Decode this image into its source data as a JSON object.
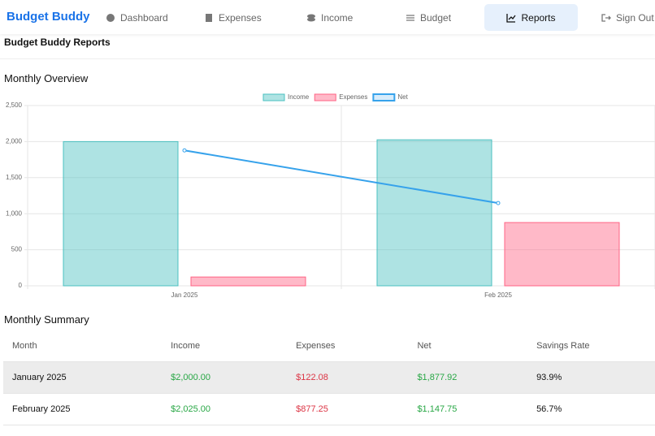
{
  "nav": {
    "brand": "Budget Buddy",
    "items": [
      "Dashboard",
      "Expenses",
      "Income",
      "Budget",
      "Reports",
      "Sign Out"
    ],
    "active": 4
  },
  "page_title": "Budget Buddy Reports",
  "chart_data": {
    "type": "bar",
    "title": "Monthly Overview",
    "categories": [
      "Jan 2025",
      "Feb 2025"
    ],
    "series": [
      {
        "name": "Income",
        "color": "#4bc0c0",
        "values": [
          2000,
          2025
        ]
      },
      {
        "name": "Expenses",
        "color": "#ff6384",
        "values": [
          122.08,
          877.25
        ]
      },
      {
        "name": "Net",
        "type": "line",
        "color": "#36a2eb",
        "values": [
          1877.92,
          1147.75
        ]
      }
    ],
    "ylim": [
      0,
      2500
    ],
    "yticks": [
      0,
      500,
      {
        "value": 1000,
        "label": "1,000"
      },
      {
        "value": 1500,
        "label": "1,500"
      },
      {
        "value": 2000,
        "label": "2,000"
      },
      {
        "value": 2500,
        "label": "2,500"
      }
    ],
    "grid": true,
    "legend": "top"
  },
  "table": {
    "title": "Monthly Summary",
    "columns": [
      "Month",
      "Income",
      "Expenses",
      "Net",
      "Savings Rate"
    ],
    "rows": [
      [
        "January 2025",
        "$2,000.00",
        "$122.08",
        "$1,877.92",
        "93.9%"
      ],
      [
        "February 2025",
        "$2,025.00",
        "$877.25",
        "$1,147.75",
        "56.7%"
      ]
    ]
  }
}
